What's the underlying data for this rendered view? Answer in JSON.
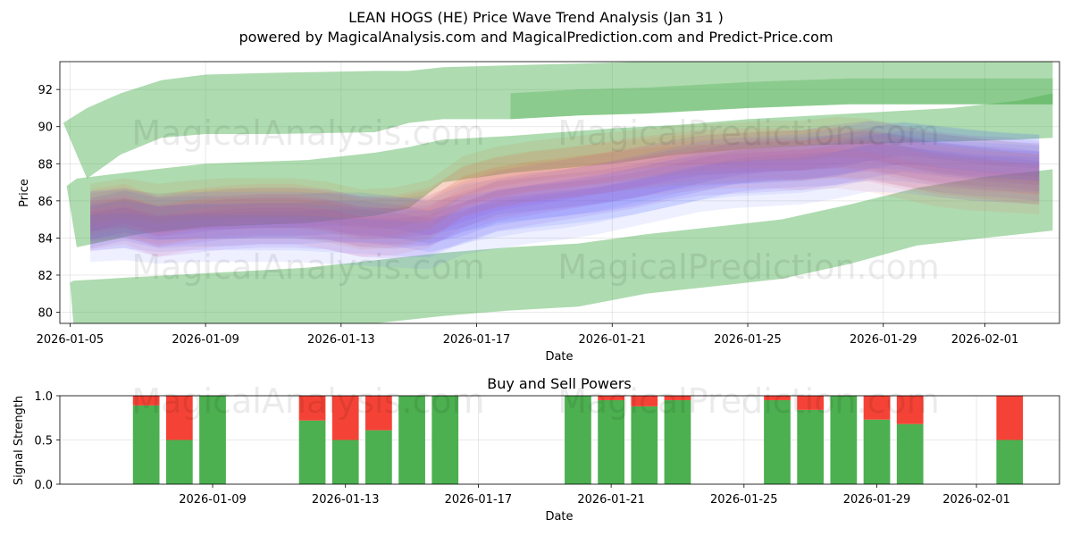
{
  "title_line1": "LEAN HOGS (HE) Price Wave Trend Analysis (Jan 31 )",
  "title_line2": "powered by MagicalAnalysis.com and MagicalPrediction.com and Predict-Price.com",
  "watermarks": [
    "MagicalAnalysis.com",
    "MagicalPrediction.com"
  ],
  "colors": {
    "green_band": "#4caf50",
    "buy": "#4caf50",
    "sell": "#f44336",
    "blue": "#1e3cff",
    "purple": "#8a2be2",
    "orange": "#d2691e",
    "red": "#ff6464"
  },
  "chart_data": [
    {
      "type": "area",
      "title": "",
      "xlabel": "Date",
      "ylabel": "Price",
      "ylim": [
        79.4,
        93.5
      ],
      "xlim_days": [
        -0.3,
        29.2
      ],
      "start_date": "2026-01-05",
      "x_ticks": [
        {
          "day": 0,
          "label": "2026-01-05"
        },
        {
          "day": 4,
          "label": "2026-01-09"
        },
        {
          "day": 8,
          "label": "2026-01-13"
        },
        {
          "day": 12,
          "label": "2026-01-17"
        },
        {
          "day": 16,
          "label": "2026-01-21"
        },
        {
          "day": 20,
          "label": "2026-01-25"
        },
        {
          "day": 24,
          "label": "2026-01-29"
        },
        {
          "day": 27,
          "label": "2026-02-01"
        }
      ],
      "y_ticks": [
        80,
        82,
        84,
        86,
        88,
        90,
        92
      ],
      "green_bands": [
        {
          "x": [
            -0.2,
            0.5,
            1.5,
            2.7,
            4,
            6,
            9,
            10,
            11,
            13,
            15,
            17,
            20,
            23,
            26,
            28,
            29
          ],
          "lower": [
            90.2,
            87.2,
            88.5,
            89.4,
            89.6,
            89.6,
            89.7,
            90.2,
            90.4,
            90.4,
            90.6,
            90.7,
            91.0,
            91.2,
            91.2,
            91.2,
            91.2
          ],
          "upper": [
            90.2,
            91.0,
            91.8,
            92.5,
            92.8,
            92.9,
            93.0,
            93.0,
            93.2,
            93.3,
            93.4,
            93.5,
            93.5,
            93.5,
            93.5,
            93.5,
            93.5
          ]
        },
        {
          "x": [
            -0.1,
            0.2,
            2,
            4,
            7,
            9,
            10,
            11,
            13,
            16,
            18,
            20,
            22,
            24,
            26,
            28,
            29
          ],
          "lower": [
            86.8,
            83.5,
            84.2,
            84.6,
            84.8,
            85.2,
            85.6,
            87.0,
            87.5,
            88.0,
            88.5,
            88.8,
            89.0,
            89.1,
            89.2,
            89.3,
            89.4
          ],
          "upper": [
            86.8,
            87.2,
            87.6,
            88.0,
            88.2,
            88.6,
            88.9,
            89.3,
            89.5,
            89.9,
            90.1,
            90.4,
            90.6,
            90.8,
            91.0,
            91.4,
            91.8
          ]
        },
        {
          "x": [
            0,
            0.1,
            2,
            4,
            7,
            9,
            11,
            13,
            15,
            17,
            19,
            21,
            23,
            25,
            27,
            29
          ],
          "lower": [
            81.6,
            79.4,
            79.4,
            79.4,
            79.4,
            79.4,
            79.8,
            80.1,
            80.3,
            81.0,
            81.4,
            81.8,
            82.6,
            83.6,
            84.0,
            84.4
          ],
          "upper": [
            81.6,
            81.7,
            81.9,
            82.1,
            82.4,
            82.8,
            83.2,
            83.5,
            83.7,
            84.2,
            84.6,
            85.0,
            85.8,
            86.7,
            87.3,
            87.7
          ]
        }
      ],
      "x": [
        0.6,
        1.6,
        2.6,
        3.6,
        4.6,
        5.6,
        6.6,
        7.6,
        8.6,
        9.6,
        10.6,
        11.6,
        12.6,
        13.6,
        14.6,
        15.6,
        16.6,
        17.6,
        18.6,
        19.6,
        20.6,
        21.6,
        22.6,
        23.6,
        24.6,
        25.6,
        26.6,
        27.6,
        28.6
      ],
      "series": [
        {
          "name": "blue",
          "color": "#1e3cff",
          "values": [
            84.8,
            85.2,
            84.8,
            84.9,
            84.9,
            85.0,
            85.0,
            85.1,
            85.1,
            84.9,
            84.6,
            85.0,
            85.7,
            85.9,
            86.1,
            86.3,
            86.6,
            87.0,
            87.4,
            87.8,
            88.0,
            88.1,
            88.2,
            88.6,
            88.9,
            88.7,
            88.5,
            88.3,
            88.2
          ],
          "width": 0.5
        },
        {
          "name": "purple",
          "color": "#8a2be2",
          "values": [
            84.9,
            85.1,
            84.6,
            84.8,
            85.0,
            85.1,
            85.1,
            85.0,
            84.6,
            84.5,
            84.7,
            85.4,
            86.0,
            86.3,
            86.6,
            86.9,
            87.2,
            87.6,
            87.9,
            88.0,
            88.1,
            88.2,
            88.5,
            88.7,
            88.4,
            88.1,
            87.9,
            87.8,
            87.6
          ],
          "width": 0.6
        },
        {
          "name": "orange",
          "color": "#d2691e",
          "values": [
            85.3,
            85.6,
            85.3,
            85.5,
            85.6,
            85.6,
            85.6,
            85.4,
            85.0,
            85.1,
            85.5,
            86.8,
            87.3,
            87.6,
            87.8,
            88.0,
            88.2,
            88.4,
            88.5,
            88.6,
            88.7,
            88.7,
            88.9,
            88.8,
            88.4,
            88.0,
            87.8,
            87.6,
            87.4
          ],
          "width": 0.6
        },
        {
          "name": "red",
          "color": "#ff6464",
          "values": [
            85.0,
            85.3,
            84.6,
            85.0,
            85.2,
            85.3,
            85.3,
            85.0,
            84.6,
            84.7,
            85.1,
            86.2,
            86.7,
            87.0,
            87.2,
            87.5,
            87.8,
            88.0,
            88.2,
            88.3,
            88.3,
            88.2,
            88.3,
            88.1,
            87.7,
            87.3,
            87.1,
            87.0,
            86.9
          ],
          "width": 0.6
        },
        {
          "name": "blue-low",
          "color": "#5a6cff",
          "values": [
            84.6,
            84.7,
            84.5,
            84.6,
            84.6,
            84.6,
            84.6,
            84.5,
            84.4,
            84.3,
            84.2,
            85.0,
            85.3,
            85.6,
            85.8,
            86.1,
            86.5,
            86.9,
            87.3,
            87.5,
            87.6,
            87.7,
            88.0,
            88.4,
            88.3,
            88.1,
            87.9,
            87.8,
            87.7
          ],
          "width": 0.7
        }
      ]
    },
    {
      "type": "bar",
      "title": "Buy and Sell Powers",
      "xlabel": "Date",
      "ylabel": "Signal Strength",
      "ylim": [
        0,
        1
      ],
      "xlim_days": [
        -0.6,
        29.5
      ],
      "y_ticks": [
        {
          "v": 0.0,
          "label": "0.0"
        },
        {
          "v": 0.5,
          "label": "0.5"
        },
        {
          "v": 1.0,
          "label": "1.0"
        }
      ],
      "x_ticks": [
        {
          "day": 4,
          "label": "2026-01-09"
        },
        {
          "day": 8,
          "label": "2026-01-13"
        },
        {
          "day": 12,
          "label": "2026-01-17"
        },
        {
          "day": 16,
          "label": "2026-01-21"
        },
        {
          "day": 20,
          "label": "2026-01-25"
        },
        {
          "day": 24,
          "label": "2026-01-29"
        },
        {
          "day": 27,
          "label": "2026-02-01"
        }
      ],
      "bars": [
        {
          "day": 2,
          "buy": 0.89
        },
        {
          "day": 3,
          "buy": 0.5
        },
        {
          "day": 4,
          "buy": 1.0
        },
        {
          "day": 7,
          "buy": 0.72
        },
        {
          "day": 8,
          "buy": 0.5
        },
        {
          "day": 9,
          "buy": 0.61
        },
        {
          "day": 10,
          "buy": 1.0
        },
        {
          "day": 11,
          "buy": 1.0
        },
        {
          "day": 15,
          "buy": 1.0
        },
        {
          "day": 16,
          "buy": 0.95
        },
        {
          "day": 17,
          "buy": 0.88
        },
        {
          "day": 18,
          "buy": 0.95
        },
        {
          "day": 21,
          "buy": 0.95
        },
        {
          "day": 22,
          "buy": 0.84
        },
        {
          "day": 23,
          "buy": 1.0
        },
        {
          "day": 24,
          "buy": 0.73
        },
        {
          "day": 25,
          "buy": 0.68
        },
        {
          "day": 28,
          "buy": 0.5
        }
      ]
    }
  ]
}
